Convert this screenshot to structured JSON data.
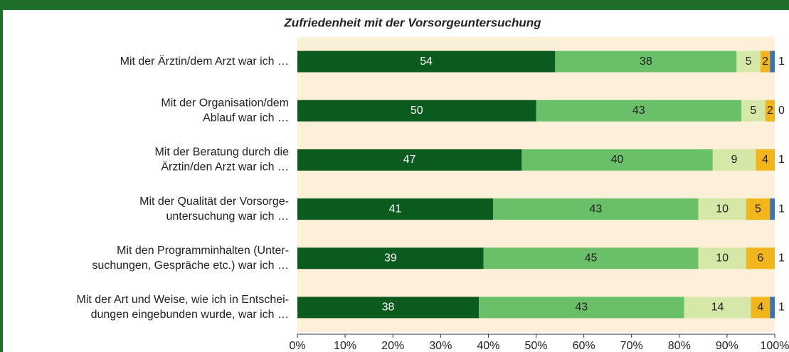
{
  "chart_data": {
    "type": "stacked-barh",
    "title": "Zufriedenheit mit der Vorsorgeuntersuchung",
    "categories": [
      [
        "Mit der Ärztin/dem Arzt war ich …"
      ],
      [
        "Mit der Organisation/dem",
        "Ablauf war ich …"
      ],
      [
        "Mit der Beratung durch die",
        "Ärztin/den Arzt war ich …"
      ],
      [
        "Mit der Qualität der Vorsorge-",
        "untersuchung war ich …"
      ],
      [
        "Mit den Programminhalten (Unter-",
        "suchungen, Gespräche etc.) war ich …"
      ],
      [
        "Mit der Art und Weise, wie ich in Entschei-",
        "dungen eingebunden wurde, war ich …"
      ]
    ],
    "series": [
      {
        "color": "#0b5a1e",
        "values": [
          54,
          50,
          47,
          41,
          39,
          38
        ]
      },
      {
        "color": "#6abf69",
        "values": [
          38,
          43,
          40,
          43,
          45,
          43
        ]
      },
      {
        "color": "#d5e8a8",
        "values": [
          5,
          5,
          9,
          10,
          10,
          14
        ]
      },
      {
        "color": "#f2b51c",
        "values": [
          2,
          2,
          4,
          5,
          6,
          4
        ]
      },
      {
        "color": "#3a72b8",
        "values": [
          1,
          0,
          1,
          1,
          1,
          1
        ]
      }
    ],
    "xlim": [
      0,
      100
    ],
    "xticks": [
      {
        "value": 0,
        "label": "0%"
      },
      {
        "value": 10,
        "label": "10%"
      },
      {
        "value": 20,
        "label": "20%"
      },
      {
        "value": 30,
        "label": "30%"
      },
      {
        "value": 40,
        "label": "40%"
      },
      {
        "value": 50,
        "label": "50%"
      },
      {
        "value": 60,
        "label": "60%"
      },
      {
        "value": 70,
        "label": "70%"
      },
      {
        "value": 80,
        "label": "80%"
      },
      {
        "value": 90,
        "label": "90%"
      },
      {
        "value": 100,
        "label": "100%"
      }
    ]
  }
}
